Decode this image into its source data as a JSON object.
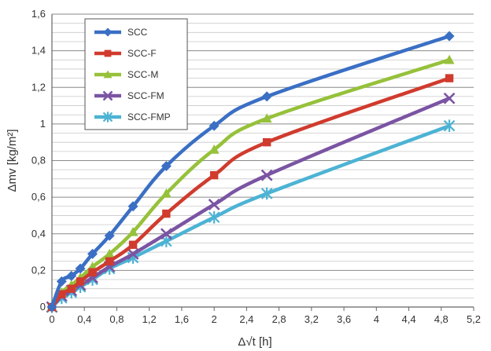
{
  "chart_data": {
    "type": "line",
    "xlabel": "Δ√t [h]",
    "ylabel": "Δmv [kg/m²]",
    "xlim": [
      0,
      5.2
    ],
    "ylim": [
      0,
      1.6
    ],
    "x_ticks": [
      "0",
      "0,4",
      "0,8",
      "1,2",
      "1,6",
      "2",
      "2,4",
      "2,8",
      "3,2",
      "3,6",
      "4",
      "4,4",
      "4,8",
      "5,2"
    ],
    "y_ticks": [
      "0",
      "0,2",
      "0,4",
      "0,6",
      "0,8",
      "1",
      "1,2",
      "1,4",
      "1,6"
    ],
    "grid": "horizontal",
    "legend_position": "top-left",
    "series": [
      {
        "name": "SCC",
        "color": "#3a6fc4",
        "marker": "diamond",
        "x": [
          0,
          0.12,
          0.24,
          0.35,
          0.5,
          0.71,
          1.0,
          1.41,
          2.0,
          2.65,
          4.9
        ],
        "y": [
          0,
          0.14,
          0.17,
          0.21,
          0.29,
          0.39,
          0.55,
          0.77,
          0.99,
          1.15,
          1.48
        ]
      },
      {
        "name": "SCC-F",
        "color": "#d03b2e",
        "marker": "square",
        "x": [
          0,
          0.12,
          0.24,
          0.35,
          0.5,
          0.71,
          1.0,
          1.41,
          2.0,
          2.65,
          4.9
        ],
        "y": [
          0,
          0.07,
          0.1,
          0.14,
          0.19,
          0.25,
          0.34,
          0.51,
          0.72,
          0.9,
          1.25
        ]
      },
      {
        "name": "SCC-M",
        "color": "#96c13a",
        "marker": "triangle",
        "x": [
          0,
          0.12,
          0.24,
          0.35,
          0.5,
          0.71,
          1.0,
          1.41,
          2.0,
          2.65,
          4.9
        ],
        "y": [
          0,
          0.08,
          0.12,
          0.16,
          0.22,
          0.29,
          0.41,
          0.62,
          0.86,
          1.03,
          1.35
        ]
      },
      {
        "name": "SCC-FM",
        "color": "#7b54a3",
        "marker": "x",
        "x": [
          0,
          0.12,
          0.24,
          0.35,
          0.5,
          0.71,
          1.0,
          1.41,
          2.0,
          2.65,
          4.9
        ],
        "y": [
          0,
          0.06,
          0.09,
          0.12,
          0.16,
          0.22,
          0.29,
          0.4,
          0.56,
          0.72,
          1.14
        ]
      },
      {
        "name": "SCC-FMP",
        "color": "#4db3d4",
        "marker": "star",
        "x": [
          0,
          0.12,
          0.24,
          0.35,
          0.5,
          0.71,
          1.0,
          1.41,
          2.0,
          2.65,
          4.9
        ],
        "y": [
          0,
          0.05,
          0.08,
          0.11,
          0.15,
          0.21,
          0.27,
          0.36,
          0.49,
          0.62,
          0.99
        ]
      }
    ]
  }
}
